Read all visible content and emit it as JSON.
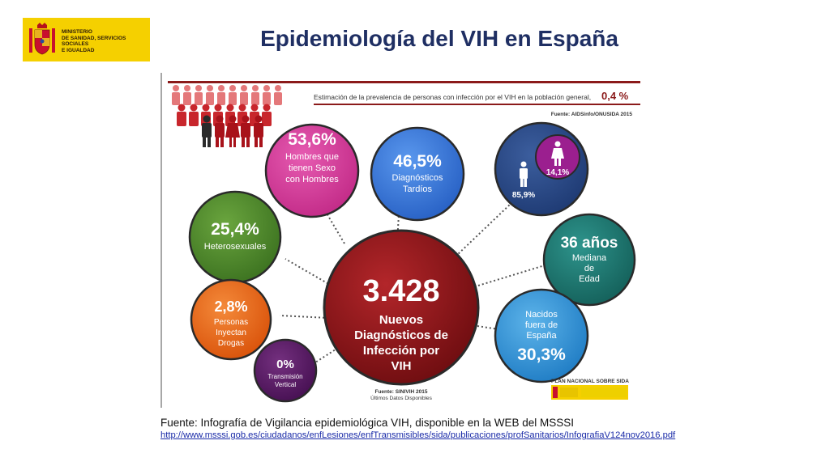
{
  "ministry": {
    "line1": "MINISTERIO",
    "line2": "DE SANIDAD, SERVICIOS SOCIALES",
    "line3": "E IGUALDAD"
  },
  "title": "Epidemiología  del VIH en España",
  "infographic": {
    "prevalence_text": "Estimación de la prevalencia de personas con infección por el VIH en la población general,",
    "prevalence_value": "0,4 %",
    "source_top": "Fuente: AIDSinfo/ONUSIDA 2015",
    "center": {
      "value": "3.428",
      "l1": "Nuevos",
      "l2": "Diagnósticos de",
      "l3": "Infección por",
      "l4": "VIH"
    },
    "msm": {
      "value": "53,6%",
      "l1": "Hombres que",
      "l2": "tienen Sexo",
      "l3": "con Hombres"
    },
    "late": {
      "value": "46,5%",
      "l1": "Diagnósticos",
      "l2": "Tardíos"
    },
    "sex": {
      "women": "14,1%",
      "men": "85,9%"
    },
    "hetero": {
      "value": "25,4%",
      "l1": "Heterosexuales"
    },
    "age": {
      "value": "36 años",
      "l1": "Mediana",
      "l2": "de",
      "l3": "Edad"
    },
    "pwid": {
      "value": "2,8%",
      "l1": "Personas",
      "l2": "Inyectan",
      "l3": "Drogas"
    },
    "foreign": {
      "l1": "Nacidos",
      "l2": "fuera de",
      "l3": "España",
      "value": "30,3%"
    },
    "vertical": {
      "value": "0%",
      "l1": "Transmisión",
      "l2": "Vertical"
    },
    "plan": "PLAN NACIONAL SOBRE SIDA",
    "source_bottom": "Fuente: SINIVIH 2015",
    "source_bottom2": "Últimos Datos Disponibles"
  },
  "footer": {
    "source": "Fuente: Infografía de Vigilancia epidemiológica VIH, disponible en la WEB del MSSSI",
    "url": "http://www.msssi.gob.es/ciudadanos/enfLesiones/enfTransmisibles/sida/publicaciones/profSanitarios/InfografiaV124nov2016.pdf"
  },
  "colors": {
    "title": "#1f2f63",
    "logo": "#f5d000",
    "center": "#8b1a1a",
    "msm": "#d43c9a",
    "late": "#3a79d8",
    "sex": "#2c4a8a",
    "women": "#9b1f8f",
    "hetero": "#4f8a2c",
    "age": "#1f7a73",
    "pwid": "#ea6417",
    "foreign": "#3a98d8",
    "vertical": "#5a1866"
  }
}
